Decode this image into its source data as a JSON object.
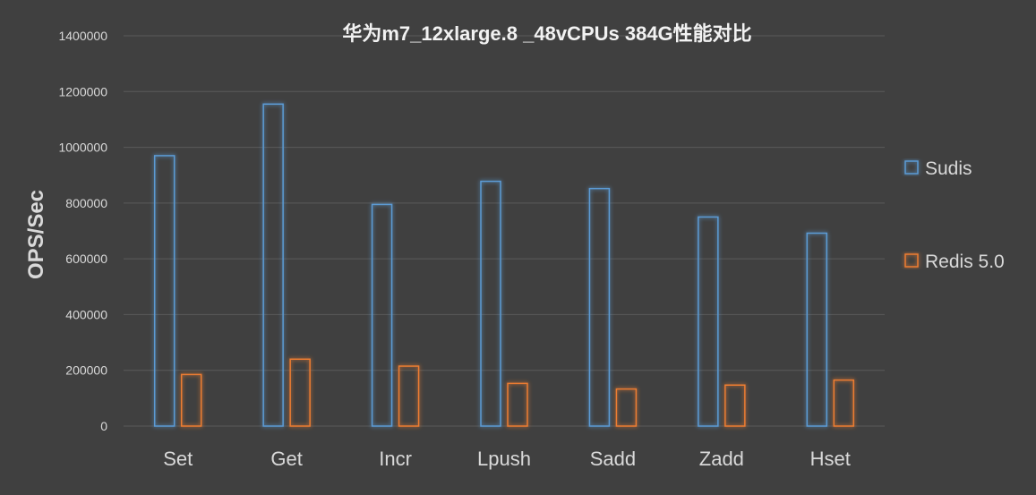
{
  "chart_data": {
    "type": "bar",
    "title": "华为m7_12xlarge.8 _48vCPUs 384G性能对比",
    "ylabel": "OPS/Sec",
    "xlabel": "",
    "categories": [
      "Set",
      "Get",
      "Incr",
      "Lpush",
      "Sadd",
      "Zadd",
      "Hset"
    ],
    "series": [
      {
        "name": "Sudis",
        "color": "#5b9bd5",
        "values": [
          970000,
          1155000,
          795000,
          878000,
          852000,
          750000,
          692000
        ]
      },
      {
        "name": "Redis 5.0",
        "color": "#ed7d31",
        "values": [
          185000,
          240000,
          215000,
          153000,
          133000,
          147000,
          165000
        ]
      }
    ],
    "ylim": [
      0,
      1400000
    ],
    "yticks": [
      "0",
      "200000",
      "400000",
      "600000",
      "800000",
      "1000000",
      "1200000",
      "1400000"
    ],
    "grid": true,
    "legend_position": "right",
    "background": "#404040",
    "bar_style": "outlined-glow"
  }
}
